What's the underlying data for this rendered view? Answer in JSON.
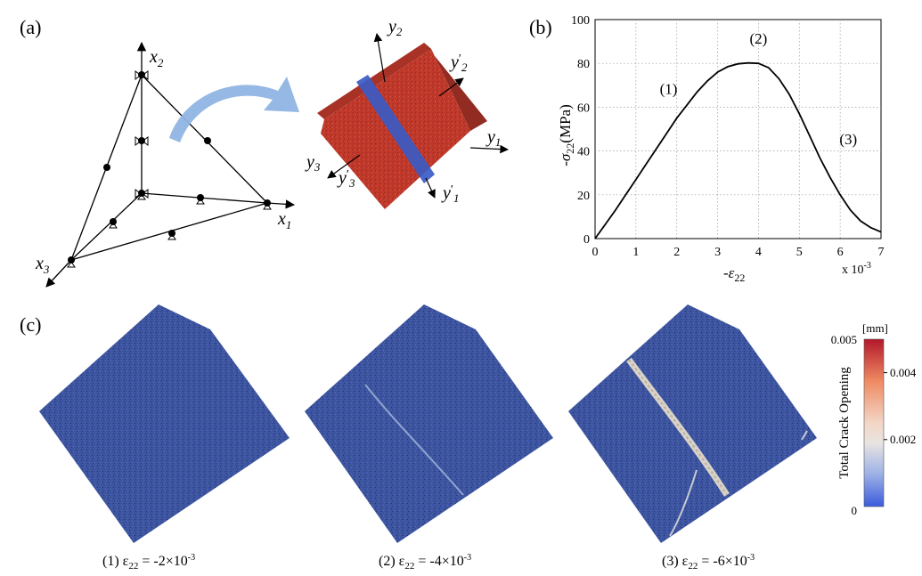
{
  "panels": {
    "a": "(a)",
    "b": "(b)",
    "c": "(c)"
  },
  "panel_a": {
    "axes": [
      {
        "base": "x",
        "sub": "2"
      },
      {
        "base": "x",
        "sub": "1"
      },
      {
        "base": "x",
        "sub": "3"
      }
    ],
    "cube_axes": [
      {
        "base": "y",
        "sub": "2",
        "prime": false
      },
      {
        "base": "y",
        "sub": "2",
        "prime": true
      },
      {
        "base": "y",
        "sub": "1",
        "prime": false
      },
      {
        "base": "y",
        "sub": "3",
        "prime": false
      },
      {
        "base": "y",
        "sub": "3",
        "prime": true
      },
      {
        "base": "y",
        "sub": "1",
        "prime": true
      }
    ],
    "colors": {
      "cube_face": "#c0392b",
      "cube_top": "#a93226",
      "cube_side": "#922b21",
      "band": "#3b5bc4",
      "arrow": "#8fb4e3"
    }
  },
  "chart_data": {
    "type": "line",
    "ylabel_base": "-σ",
    "ylabel_sub": "22",
    "ylabel_unit": "(MPa)",
    "xlabel_base": "-ε",
    "xlabel_sub": "22",
    "x_multiplier": "x 10",
    "x_multiplier_exp": "-3",
    "xlim": [
      0,
      7
    ],
    "ylim": [
      0,
      100
    ],
    "xticks": [
      0,
      1,
      2,
      3,
      4,
      5,
      6,
      7
    ],
    "yticks": [
      0,
      20,
      40,
      60,
      80,
      100
    ],
    "grid": true,
    "series": [
      {
        "x": [
          0,
          0.25,
          0.5,
          0.75,
          1.0,
          1.25,
          1.5,
          1.75,
          2.0,
          2.25,
          2.5,
          2.75,
          3.0,
          3.25,
          3.5,
          3.75,
          4.0,
          4.25,
          4.5,
          4.75,
          5.0,
          5.25,
          5.5,
          5.75,
          6.0,
          6.25,
          6.5,
          6.75,
          7.0
        ],
        "y": [
          0,
          6.5,
          13,
          20,
          27,
          34,
          41,
          48,
          55,
          61,
          67,
          72,
          76,
          78.5,
          79.8,
          80.2,
          80,
          78,
          73,
          66,
          57,
          47,
          37,
          28,
          20,
          13,
          8,
          5,
          3
        ]
      }
    ],
    "annotations": [
      {
        "text": "(1)",
        "x": 1.8,
        "y": 66
      },
      {
        "text": "(2)",
        "x": 4.0,
        "y": 89
      },
      {
        "text": "(3)",
        "x": 6.2,
        "y": 43
      }
    ]
  },
  "panel_c": {
    "captions": [
      {
        "label": "(1) ε",
        "sub": "22",
        "value": " = -2×10",
        "exp": "-3"
      },
      {
        "label": "(2) ε",
        "sub": "22",
        "value": " = -4×10",
        "exp": "-3"
      },
      {
        "label": "(3) ε",
        "sub": "22",
        "value": " = -6×10",
        "exp": "-3"
      }
    ],
    "colorbar": {
      "unit": "[mm]",
      "title": "Total Crack Opening",
      "ticks": [
        "0.005",
        "0.004",
        "0.002",
        "0"
      ],
      "tick_values": [
        0.005,
        0.004,
        0.002,
        0
      ],
      "range": [
        0,
        0.005
      ],
      "colors": {
        "high": "#b2182b",
        "mid": "#e8e4e0",
        "low": "#3b5bdb"
      }
    },
    "colors": {
      "specimen": "#3d55a0",
      "crack": "#d8d2c8"
    }
  }
}
